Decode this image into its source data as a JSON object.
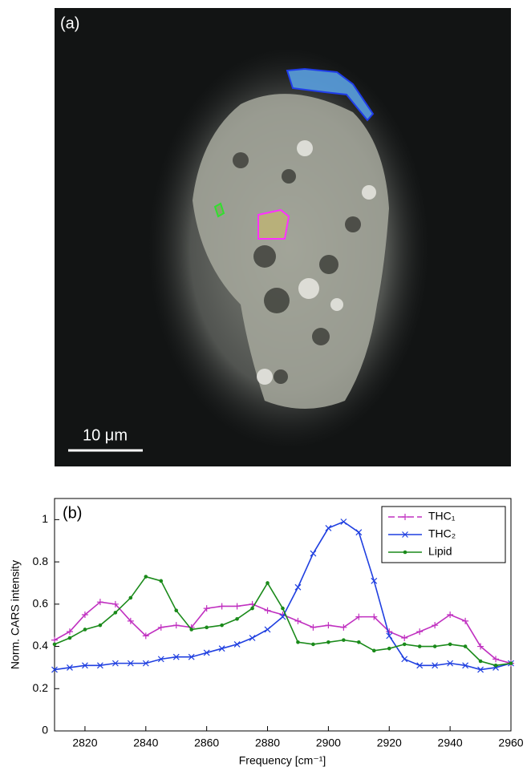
{
  "image_panel": {
    "label": "(a)",
    "scale_bar": "10 μm"
  },
  "chart_data": {
    "type": "line",
    "label": "(b)",
    "xlabel": "Frequency [cm⁻¹]",
    "ylabel": "Norm. CARS intensity",
    "x": [
      2810,
      2815,
      2820,
      2825,
      2830,
      2835,
      2840,
      2845,
      2850,
      2855,
      2860,
      2865,
      2870,
      2875,
      2880,
      2885,
      2890,
      2895,
      2900,
      2905,
      2910,
      2915,
      2920,
      2925,
      2930,
      2935,
      2940,
      2945,
      2950,
      2955,
      2960
    ],
    "series": [
      {
        "name": "THC₁",
        "color": "#c030c0",
        "marker": "+",
        "values": [
          0.43,
          0.47,
          0.55,
          0.61,
          0.6,
          0.52,
          0.45,
          0.49,
          0.5,
          0.49,
          0.58,
          0.59,
          0.59,
          0.6,
          0.57,
          0.55,
          0.52,
          0.49,
          0.5,
          0.49,
          0.54,
          0.54,
          0.47,
          0.44,
          0.47,
          0.5,
          0.55,
          0.52,
          0.4,
          0.34,
          0.32
        ]
      },
      {
        "name": "THC₂",
        "color": "#1f3fe0",
        "marker": "x",
        "values": [
          0.29,
          0.3,
          0.31,
          0.31,
          0.32,
          0.32,
          0.32,
          0.34,
          0.35,
          0.35,
          0.37,
          0.39,
          0.41,
          0.44,
          0.48,
          0.54,
          0.68,
          0.84,
          0.96,
          0.99,
          0.94,
          0.71,
          0.45,
          0.34,
          0.31,
          0.31,
          0.32,
          0.31,
          0.29,
          0.3,
          0.32
        ]
      },
      {
        "name": "Lipid",
        "color": "#1a8a1a",
        "marker": "dot",
        "values": [
          0.41,
          0.44,
          0.48,
          0.5,
          0.56,
          0.63,
          0.73,
          0.71,
          0.57,
          0.48,
          0.49,
          0.5,
          0.53,
          0.58,
          0.7,
          0.58,
          0.42,
          0.41,
          0.42,
          0.43,
          0.42,
          0.38,
          0.39,
          0.41,
          0.4,
          0.4,
          0.41,
          0.4,
          0.33,
          0.31,
          0.32
        ]
      }
    ],
    "xlim": [
      2810,
      2960
    ],
    "xticks": [
      2820,
      2840,
      2860,
      2880,
      2900,
      2920,
      2940,
      2960
    ],
    "ylim": [
      0,
      1.1
    ],
    "yticks": [
      0,
      0.2,
      0.4,
      0.6,
      0.8,
      1
    ],
    "legend": "upper right",
    "grid": false
  }
}
